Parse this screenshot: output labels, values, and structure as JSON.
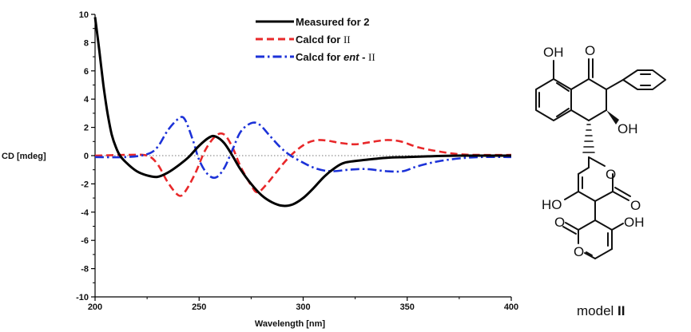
{
  "chart_data": {
    "type": "line",
    "title": "",
    "xlabel": "Wavelength [nm]",
    "ylabel": "CD [mdeg]",
    "xlim": [
      200,
      400
    ],
    "ylim": [
      -10,
      10
    ],
    "x_ticks": [
      200,
      250,
      300,
      350,
      400
    ],
    "x_tick_labels": [
      "200",
      "250",
      "300",
      "350",
      "400"
    ],
    "y_ticks": [
      10,
      8,
      6,
      4,
      2,
      0,
      -2,
      -4,
      -6,
      -8,
      -10
    ],
    "y_tick_labels": [
      "10",
      "8",
      "6",
      "4",
      "2",
      "0",
      "-2",
      "-4",
      "-6",
      "-8",
      "-10"
    ],
    "zero_line": true,
    "legend_position": "top-center",
    "series": [
      {
        "label_parts": [
          "Measured for 2"
        ],
        "color": "#000000",
        "style": "solid",
        "points": [
          [
            200,
            9.8
          ],
          [
            202,
            7.5
          ],
          [
            204,
            5.0
          ],
          [
            206,
            3.0
          ],
          [
            208,
            1.5
          ],
          [
            210,
            0.6
          ],
          [
            212,
            0.0
          ],
          [
            215,
            -0.5
          ],
          [
            220,
            -1.1
          ],
          [
            225,
            -1.4
          ],
          [
            230,
            -1.5
          ],
          [
            235,
            -1.2
          ],
          [
            240,
            -0.7
          ],
          [
            245,
            -0.1
          ],
          [
            250,
            0.7
          ],
          [
            255,
            1.3
          ],
          [
            258,
            1.35
          ],
          [
            262,
            0.9
          ],
          [
            266,
            0.0
          ],
          [
            270,
            -1.0
          ],
          [
            275,
            -2.0
          ],
          [
            280,
            -2.8
          ],
          [
            285,
            -3.3
          ],
          [
            290,
            -3.55
          ],
          [
            295,
            -3.45
          ],
          [
            300,
            -3.0
          ],
          [
            305,
            -2.3
          ],
          [
            310,
            -1.5
          ],
          [
            315,
            -0.9
          ],
          [
            320,
            -0.5
          ],
          [
            330,
            -0.3
          ],
          [
            340,
            -0.15
          ],
          [
            350,
            -0.1
          ],
          [
            360,
            -0.05
          ],
          [
            375,
            0.0
          ],
          [
            400,
            0.0
          ]
        ]
      },
      {
        "label_parts": [
          "Calcd for ",
          "II"
        ],
        "color": "#e8282a",
        "style": "dashed",
        "points": [
          [
            200,
            0.0
          ],
          [
            215,
            0.05
          ],
          [
            225,
            0.0
          ],
          [
            230,
            -0.6
          ],
          [
            235,
            -1.9
          ],
          [
            240,
            -2.8
          ],
          [
            243,
            -2.6
          ],
          [
            248,
            -1.3
          ],
          [
            253,
            0.4
          ],
          [
            258,
            1.4
          ],
          [
            262,
            1.5
          ],
          [
            266,
            0.6
          ],
          [
            270,
            -0.8
          ],
          [
            275,
            -2.1
          ],
          [
            278,
            -2.6
          ],
          [
            282,
            -2.1
          ],
          [
            287,
            -1.2
          ],
          [
            292,
            -0.3
          ],
          [
            297,
            0.4
          ],
          [
            302,
            0.9
          ],
          [
            307,
            1.1
          ],
          [
            312,
            1.05
          ],
          [
            318,
            0.9
          ],
          [
            325,
            0.8
          ],
          [
            332,
            0.95
          ],
          [
            340,
            1.1
          ],
          [
            347,
            1.0
          ],
          [
            355,
            0.6
          ],
          [
            365,
            0.3
          ],
          [
            375,
            0.1
          ],
          [
            385,
            0.05
          ],
          [
            400,
            0.05
          ]
        ]
      },
      {
        "label_parts": [
          "Calcd for ",
          "ent",
          " - ",
          "II"
        ],
        "color": "#1c32d8",
        "style": "dashdot",
        "points": [
          [
            200,
            -0.1
          ],
          [
            215,
            -0.1
          ],
          [
            225,
            0.1
          ],
          [
            230,
            0.6
          ],
          [
            235,
            1.8
          ],
          [
            240,
            2.6
          ],
          [
            243,
            2.6
          ],
          [
            247,
            1.1
          ],
          [
            250,
            -0.3
          ],
          [
            254,
            -1.3
          ],
          [
            258,
            -1.55
          ],
          [
            262,
            -0.9
          ],
          [
            266,
            0.4
          ],
          [
            270,
            1.7
          ],
          [
            275,
            2.3
          ],
          [
            279,
            2.2
          ],
          [
            284,
            1.4
          ],
          [
            289,
            0.6
          ],
          [
            294,
            0.0
          ],
          [
            300,
            -0.5
          ],
          [
            305,
            -0.85
          ],
          [
            310,
            -1.05
          ],
          [
            315,
            -1.1
          ],
          [
            322,
            -1.0
          ],
          [
            330,
            -0.95
          ],
          [
            340,
            -1.1
          ],
          [
            348,
            -1.1
          ],
          [
            355,
            -0.75
          ],
          [
            365,
            -0.4
          ],
          [
            375,
            -0.2
          ],
          [
            385,
            -0.1
          ],
          [
            400,
            -0.1
          ]
        ]
      }
    ]
  },
  "structure": {
    "caption_prefix": "model ",
    "caption_numeral": "II",
    "atoms": {
      "oh_peri": "OH",
      "o_ketone": "O",
      "oh_tertiary": "OH",
      "o_ring_a": "O",
      "o_lactone_a": "O",
      "ho_pyranone_a": "HO",
      "o_lactone_b": "O",
      "oh_pyranone_b": "OH",
      "o_ring_b": "O"
    }
  }
}
